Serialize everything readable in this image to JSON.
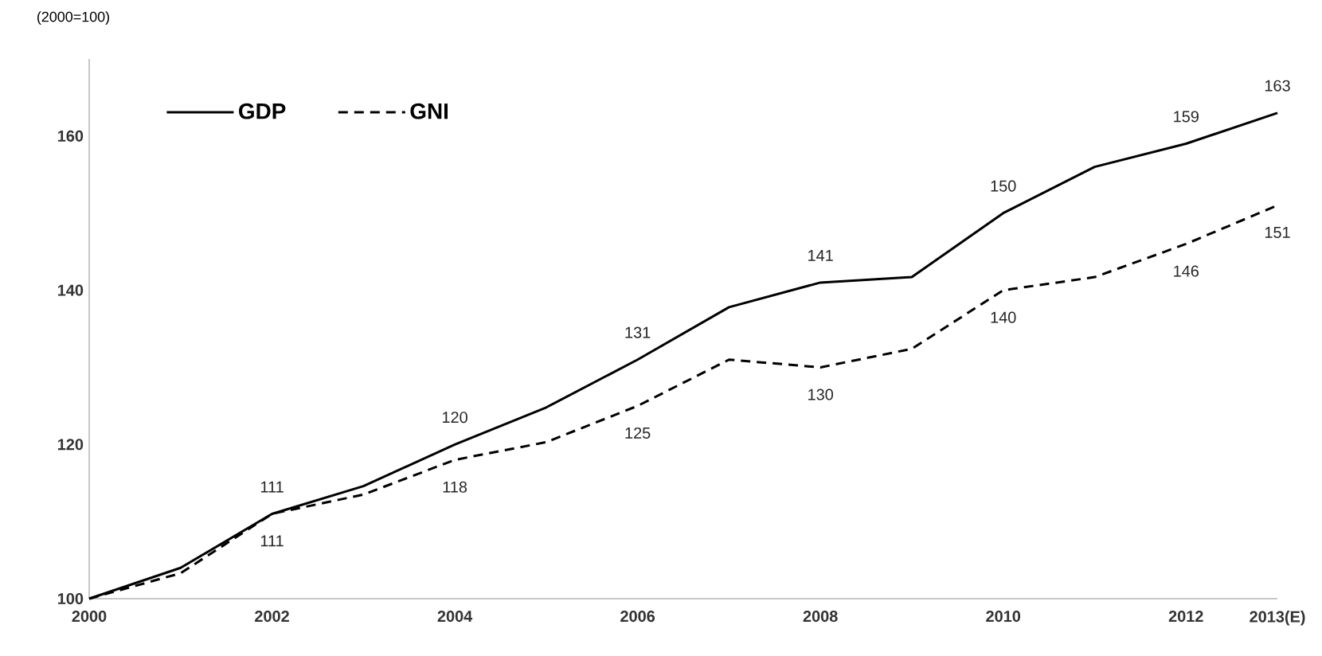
{
  "chart_data": {
    "type": "line",
    "ylabel": "(2000=100)",
    "categories": [
      "2000",
      null,
      "2002",
      null,
      "2004",
      null,
      "2006",
      null,
      "2008",
      null,
      "2010",
      null,
      "2012",
      "2013(E)"
    ],
    "series": [
      {
        "name": "GDP",
        "color": "#000000",
        "line_style": "solid",
        "values": [
          100,
          104,
          111,
          114.6,
          120,
          124.8,
          131,
          137.8,
          141,
          141.7,
          150,
          156,
          159,
          163
        ],
        "value_labels": [
          null,
          null,
          "111",
          null,
          "120",
          null,
          "131",
          null,
          "141",
          null,
          "150",
          null,
          "159",
          "163"
        ]
      },
      {
        "name": "GNI",
        "color": "#000000",
        "line_style": "dashed",
        "values": [
          100,
          103.3,
          111,
          113.5,
          118,
          120.3,
          125,
          131,
          130,
          132.4,
          140,
          141.7,
          146,
          151
        ],
        "value_labels": [
          null,
          null,
          "111",
          null,
          "118",
          null,
          "125",
          null,
          "130",
          null,
          "140",
          null,
          "146",
          "151"
        ]
      }
    ],
    "ylim": [
      100,
      170
    ],
    "yticks": [
      100,
      120,
      140,
      160
    ],
    "grid": false,
    "legend": "top left",
    "marker": "none"
  }
}
